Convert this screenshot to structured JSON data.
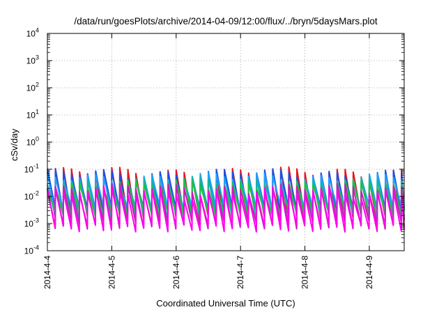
{
  "chart_data": {
    "type": "line",
    "title": "/data/run/goesPlots/archive/2014-04-09/12:00/flux/../bryn/5daysMars.plot",
    "xlabel": "Coordinated Universal Time (UTC)",
    "ylabel": "cSv/day",
    "yscale": "log",
    "ylim": [
      0.0001,
      10000
    ],
    "xlim": [
      "2014-04-04 00:00",
      "2014-04-09 13:00"
    ],
    "grid": true,
    "legend": "none",
    "x_ticks": [
      "2014-4-4",
      "2014-4-5",
      "2014-4-6",
      "2014-4-7",
      "2014-4-8",
      "2014-4-9"
    ],
    "y_ticks": [
      {
        "base": "10",
        "exp": "-4",
        "value": 0.0001
      },
      {
        "base": "10",
        "exp": "-3",
        "value": 0.001
      },
      {
        "base": "10",
        "exp": "-2",
        "value": 0.01
      },
      {
        "base": "10",
        "exp": "-1",
        "value": 0.1
      },
      {
        "base": "10",
        "exp": "0",
        "value": 1
      },
      {
        "base": "10",
        "exp": "1",
        "value": 10
      },
      {
        "base": "10",
        "exp": "2",
        "value": 100
      },
      {
        "base": "10",
        "exp": "3",
        "value": 1000
      },
      {
        "base": "10",
        "exp": "4",
        "value": 10000
      }
    ],
    "sawtooth_period_hours": 3,
    "series": [
      {
        "color": "#e8141e",
        "peak": 0.08,
        "trough": 0.0016
      },
      {
        "color": "#1f4fe0",
        "peak": 0.07,
        "trough": 0.003
      },
      {
        "color": "#1aa3ff",
        "peak": 0.05,
        "trough": 0.0035
      },
      {
        "color": "#12b5a3",
        "peak": 0.035,
        "trough": 0.002
      },
      {
        "color": "#20c040",
        "peak": 0.028,
        "trough": 0.0025
      },
      {
        "color": "#c81eb4",
        "peak": 0.02,
        "trough": 0.0009
      },
      {
        "color": "#ff00ee",
        "peak": 0.015,
        "trough": 0.0007
      }
    ]
  }
}
